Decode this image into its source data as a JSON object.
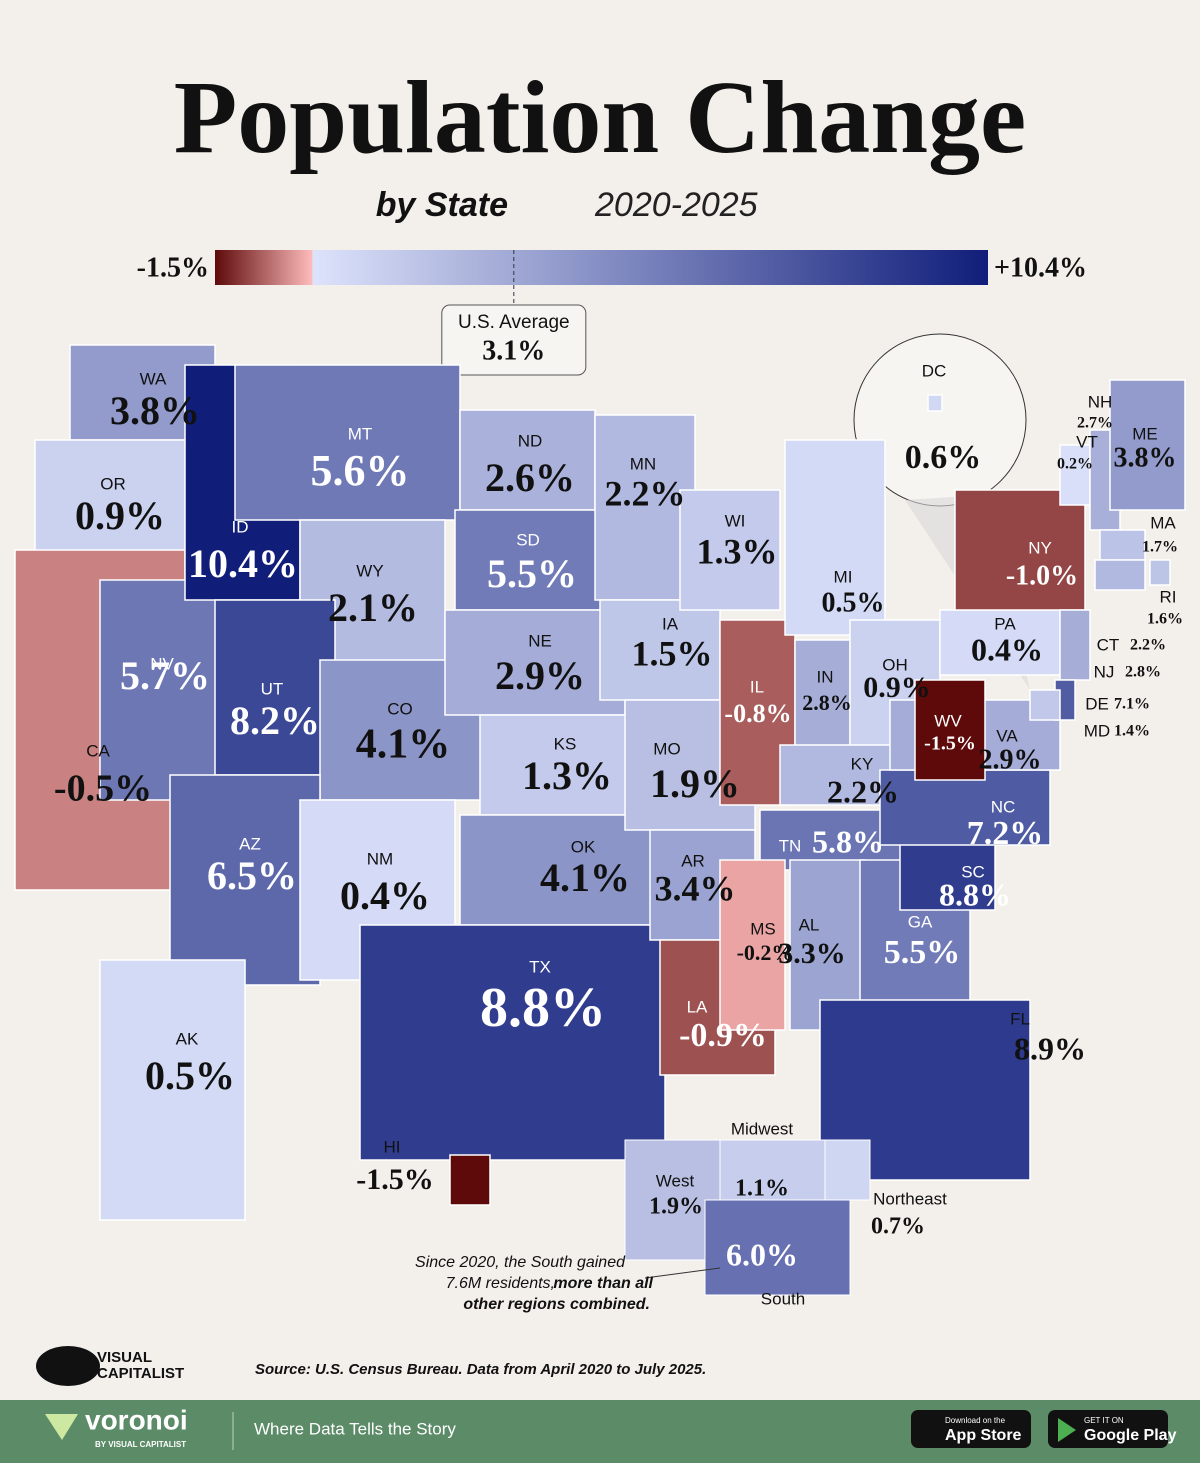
{
  "title": "Population Change",
  "subtitle_by": "by State",
  "subtitle_years": "2020-2025",
  "colors": {
    "negative": [
      "#5e0a0a",
      "#ffbcbc"
    ],
    "positive": [
      "#dde3fb",
      "#101e7a"
    ]
  },
  "legend": {
    "min": {
      "value": -1.5,
      "label": "-1.5%"
    },
    "max": {
      "value": 10.4,
      "label": "+10.4%"
    },
    "average": {
      "title": "U.S. Average",
      "value": 3.1,
      "label": "3.1%"
    }
  },
  "states": [
    {
      "abbr": "WA",
      "value": 3.8,
      "label": "3.8%"
    },
    {
      "abbr": "OR",
      "value": 0.9,
      "label": "0.9%"
    },
    {
      "abbr": "CA",
      "value": -0.5,
      "label": "-0.5%"
    },
    {
      "abbr": "NV",
      "value": 5.7,
      "label": "5.7%"
    },
    {
      "abbr": "ID",
      "value": 10.4,
      "label": "10.4%"
    },
    {
      "abbr": "MT",
      "value": 5.6,
      "label": "5.6%"
    },
    {
      "abbr": "WY",
      "value": 2.1,
      "label": "2.1%"
    },
    {
      "abbr": "UT",
      "value": 8.2,
      "label": "8.2%"
    },
    {
      "abbr": "CO",
      "value": 4.1,
      "label": "4.1%"
    },
    {
      "abbr": "AZ",
      "value": 6.5,
      "label": "6.5%"
    },
    {
      "abbr": "NM",
      "value": 0.4,
      "label": "0.4%"
    },
    {
      "abbr": "ND",
      "value": 2.6,
      "label": "2.6%"
    },
    {
      "abbr": "SD",
      "value": 5.5,
      "label": "5.5%"
    },
    {
      "abbr": "NE",
      "value": 2.9,
      "label": "2.9%"
    },
    {
      "abbr": "KS",
      "value": 1.3,
      "label": "1.3%"
    },
    {
      "abbr": "OK",
      "value": 4.1,
      "label": "4.1%"
    },
    {
      "abbr": "TX",
      "value": 8.8,
      "label": "8.8%"
    },
    {
      "abbr": "MN",
      "value": 2.2,
      "label": "2.2%"
    },
    {
      "abbr": "IA",
      "value": 1.5,
      "label": "1.5%"
    },
    {
      "abbr": "MO",
      "value": 1.9,
      "label": "1.9%"
    },
    {
      "abbr": "AR",
      "value": 3.4,
      "label": "3.4%"
    },
    {
      "abbr": "LA",
      "value": -0.9,
      "label": "-0.9%"
    },
    {
      "abbr": "WI",
      "value": 1.3,
      "label": "1.3%"
    },
    {
      "abbr": "IL",
      "value": -0.8,
      "label": "-0.8%"
    },
    {
      "abbr": "MI",
      "value": 0.5,
      "label": "0.5%"
    },
    {
      "abbr": "IN",
      "value": 2.8,
      "label": "2.8%"
    },
    {
      "abbr": "OH",
      "value": 0.9,
      "label": "0.9%"
    },
    {
      "abbr": "KY",
      "value": 2.2,
      "label": "2.2%"
    },
    {
      "abbr": "TN",
      "value": 5.8,
      "label": "5.8%"
    },
    {
      "abbr": "MS",
      "value": -0.2,
      "label": "-0.2%"
    },
    {
      "abbr": "AL",
      "value": 3.3,
      "label": "3.3%"
    },
    {
      "abbr": "GA",
      "value": 5.5,
      "label": "5.5%"
    },
    {
      "abbr": "FL",
      "value": 8.9,
      "label": "8.9%"
    },
    {
      "abbr": "SC",
      "value": 8.8,
      "label": "8.8%"
    },
    {
      "abbr": "NC",
      "value": 7.2,
      "label": "7.2%"
    },
    {
      "abbr": "VA",
      "value": 2.9,
      "label": "2.9%"
    },
    {
      "abbr": "WV",
      "value": -1.5,
      "label": "-1.5%"
    },
    {
      "abbr": "PA",
      "value": 0.4,
      "label": "0.4%"
    },
    {
      "abbr": "NY",
      "value": -1.0,
      "label": "-1.0%"
    },
    {
      "abbr": "VT",
      "value": 0.2,
      "label": "0.2%"
    },
    {
      "abbr": "NH",
      "value": 2.7,
      "label": "2.7%"
    },
    {
      "abbr": "ME",
      "value": 3.8,
      "label": "3.8%"
    },
    {
      "abbr": "MA",
      "value": 1.7,
      "label": "1.7%"
    },
    {
      "abbr": "RI",
      "value": 1.6,
      "label": "1.6%"
    },
    {
      "abbr": "CT",
      "value": 2.2,
      "label": "2.2%"
    },
    {
      "abbr": "NJ",
      "value": 2.8,
      "label": "2.8%"
    },
    {
      "abbr": "DE",
      "value": 7.1,
      "label": "7.1%"
    },
    {
      "abbr": "MD",
      "value": 1.4,
      "label": "1.4%"
    },
    {
      "abbr": "DC",
      "value": 0.6,
      "label": "0.6%"
    },
    {
      "abbr": "AK",
      "value": 0.5,
      "label": "0.5%"
    },
    {
      "abbr": "HI",
      "value": -1.5,
      "label": "-1.5%"
    }
  ],
  "regions": [
    {
      "name": "West",
      "value": 1.9,
      "label": "1.9%"
    },
    {
      "name": "Midwest",
      "value": 1.1,
      "label": "1.1%"
    },
    {
      "name": "Northeast",
      "value": 0.7,
      "label": "0.7%"
    },
    {
      "name": "South",
      "value": 6.0,
      "label": "6.0%"
    }
  ],
  "annotation": [
    "Since 2020, the South gained",
    "7.6M residents,",
    "more than all",
    "other regions combined."
  ],
  "brand": [
    "VISUAL",
    "CAPITALIST"
  ],
  "source": "Source: U.S. Census Bureau. Data from April 2020 to July 2025.",
  "footer": {
    "logo": "voronoi",
    "logo_sub": "BY VISUAL CAPITALIST",
    "tagline": "Where Data Tells the Story",
    "app_store": [
      "Download on the",
      "App Store"
    ],
    "google_play": [
      "GET IT ON",
      "Google Play"
    ]
  }
}
